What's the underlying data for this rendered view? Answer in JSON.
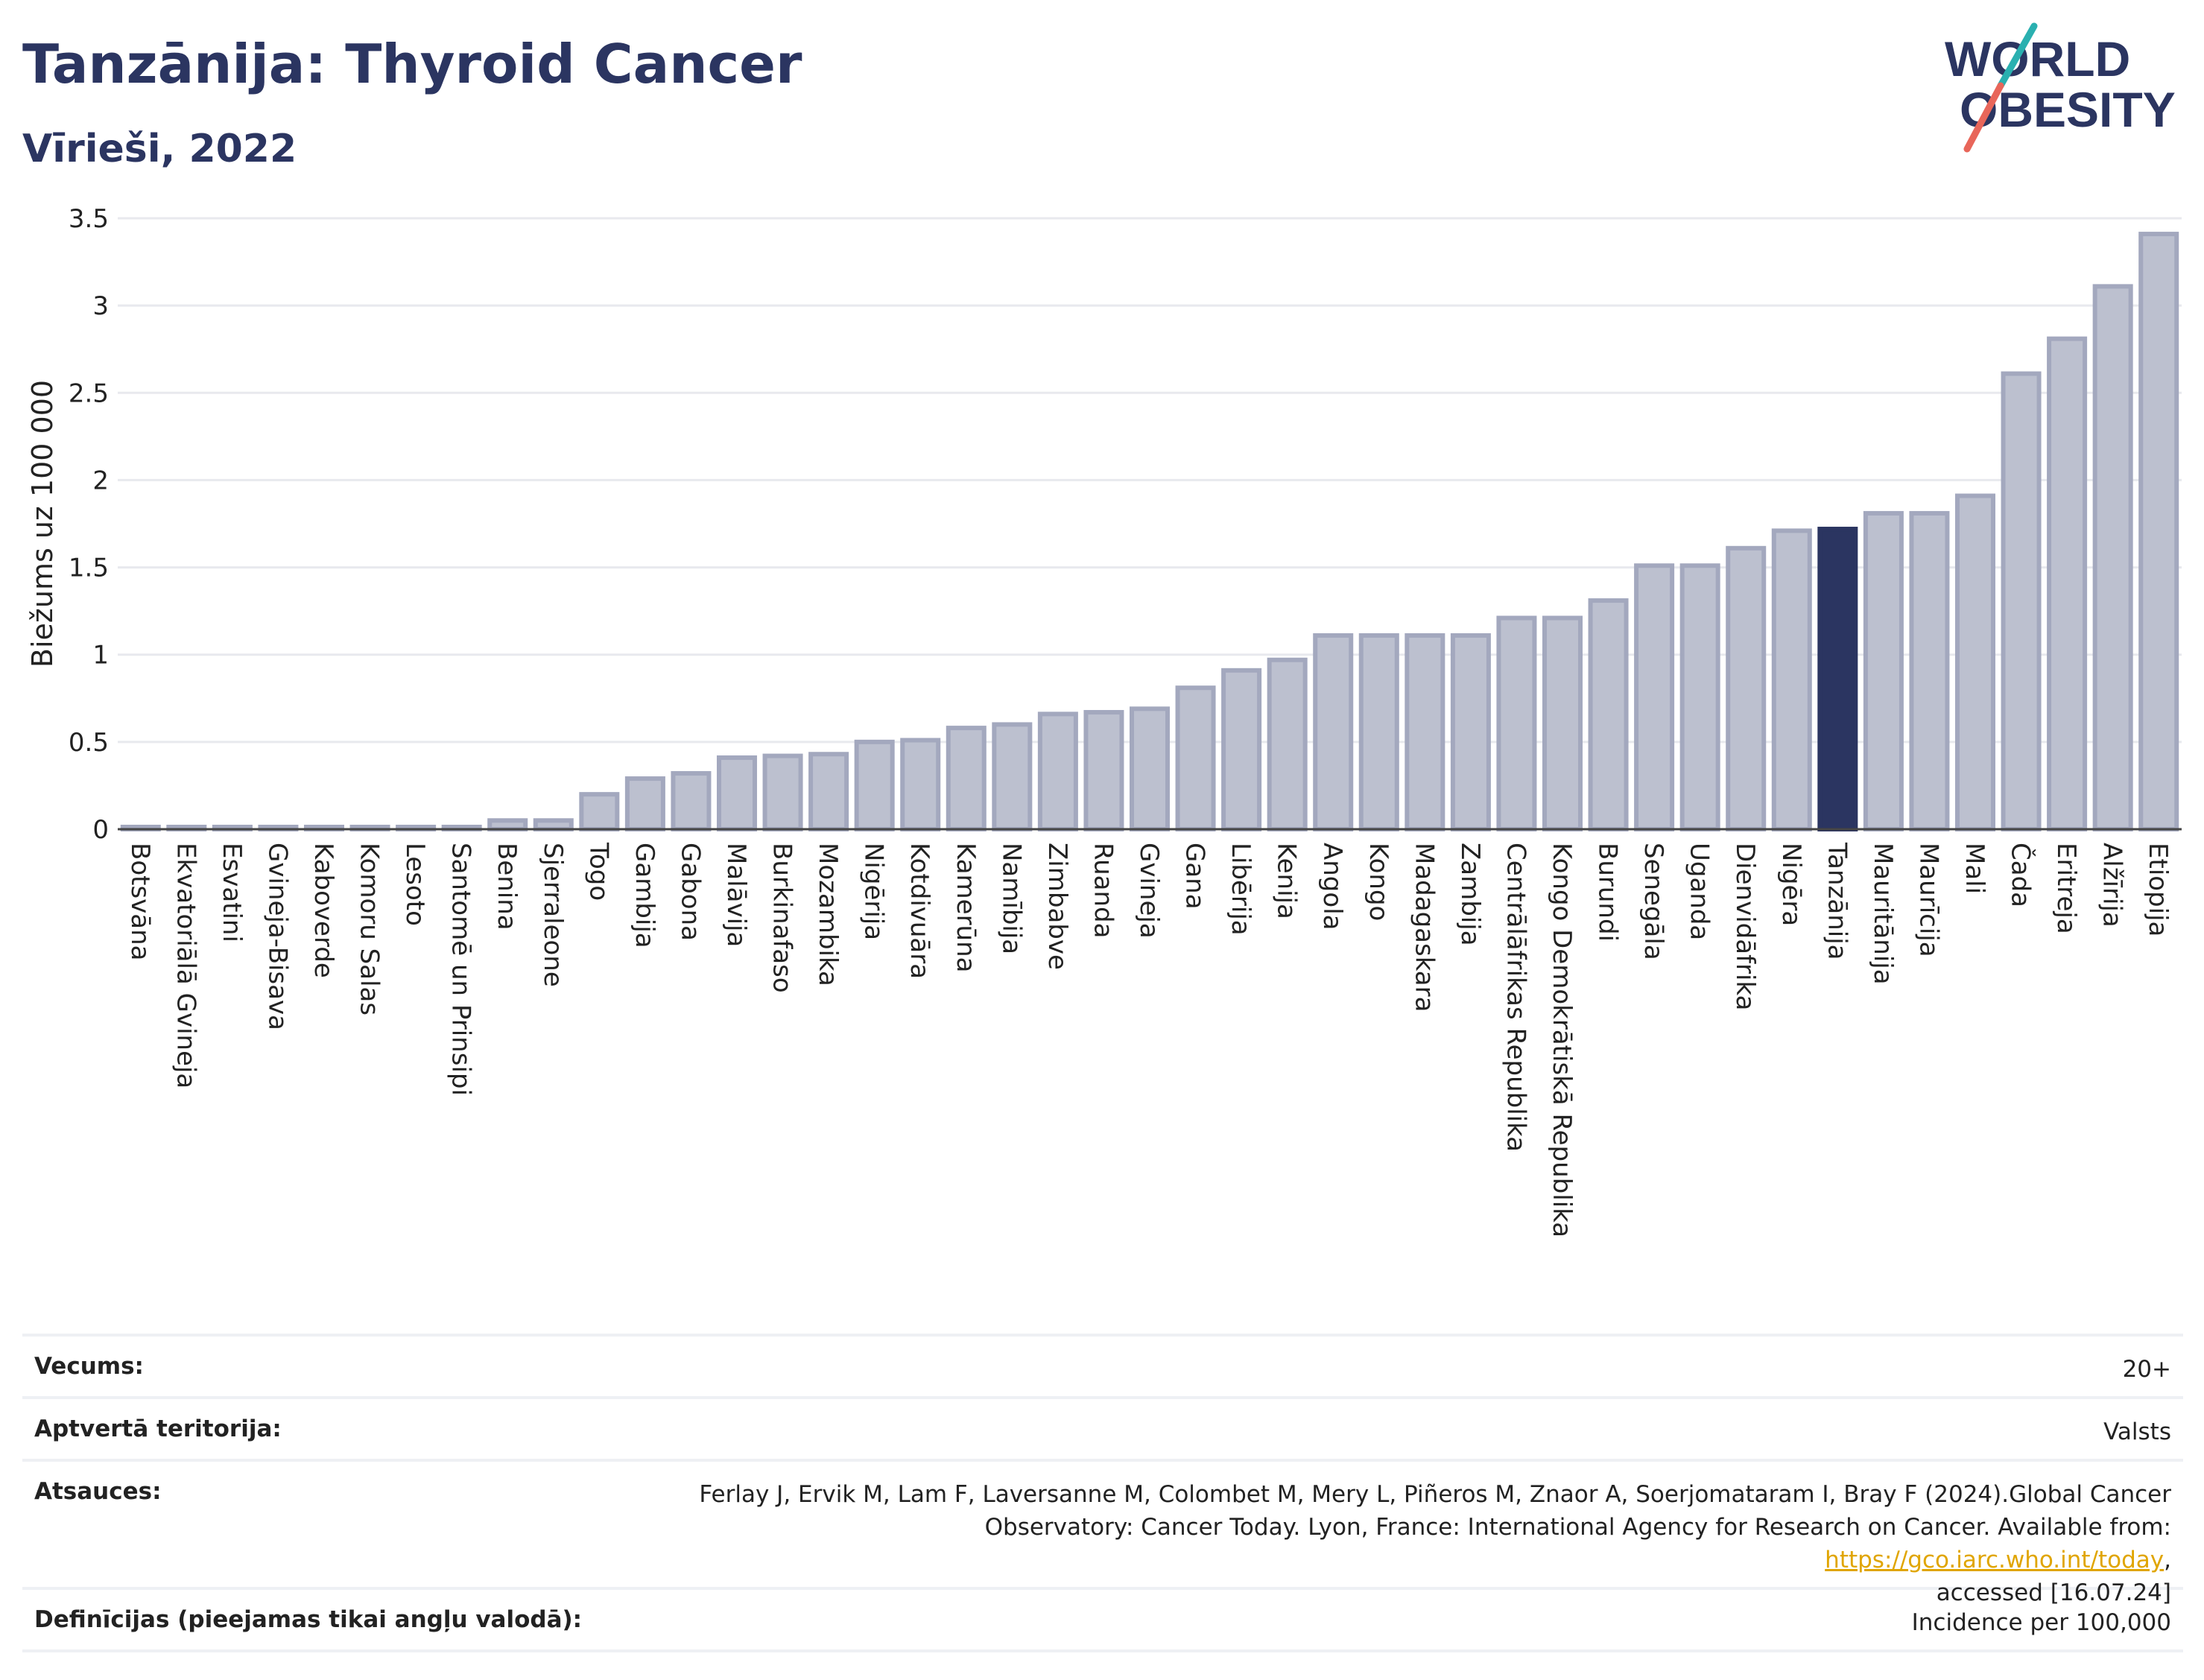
{
  "header": {
    "title": "Tanzānija: Thyroid Cancer",
    "subtitle": "Vīrieši, 2022",
    "logo_line1": "WORLD",
    "logo_line2": "OBESITY"
  },
  "colors": {
    "bar": "#bcc0cf",
    "bar_stroke": "#a3a8be",
    "highlight": "#2b3561",
    "title": "#2b3561",
    "logo_teal": "#2ab0b0",
    "logo_red": "#e8665a"
  },
  "chart_data": {
    "type": "bar",
    "title": "Tanzānija: Thyroid Cancer",
    "subtitle": "Vīrieši, 2022",
    "ylabel": "Biežums uz 100 000",
    "xlabel": "",
    "ylim": [
      0,
      3.5
    ],
    "yticks": [
      0,
      0.5,
      1,
      1.5,
      2,
      2.5,
      3,
      3.5
    ],
    "ytick_labels": [
      "0",
      "0.5",
      "1",
      "1.5",
      "2",
      "2.5",
      "3",
      "3.5"
    ],
    "grid": true,
    "highlight": "Tanzānija",
    "categories": [
      "Botsvāna",
      "Ekvatoriālā Gvineja",
      "Esvatini",
      "Gvineja-Bisava",
      "Kaboverde",
      "Komoru Salas",
      "Lesoto",
      "Santomē un Prinsipi",
      "Benina",
      "Sjerraleone",
      "Togo",
      "Gambija",
      "Gabona",
      "Malāvija",
      "Burkinafaso",
      "Mozambika",
      "Nigērija",
      "Kotdivuāra",
      "Kamerūna",
      "Namībija",
      "Zimbabve",
      "Ruanda",
      "Gvineja",
      "Gana",
      "Libērija",
      "Kenija",
      "Angola",
      "Kongo",
      "Madagaskara",
      "Zambija",
      "Centrālāfrikas Republika",
      "Kongo Demokrātiskā Republika",
      "Burundi",
      "Senegāla",
      "Uganda",
      "Dienvidāfrika",
      "Nigēra",
      "Tanzānija",
      "Mauritānija",
      "Maurīcija",
      "Mali",
      "Čada",
      "Eritreja",
      "Alžīrija",
      "Etiopija"
    ],
    "values": [
      0,
      0,
      0,
      0,
      0,
      0,
      0,
      0,
      0.05,
      0.05,
      0.2,
      0.29,
      0.32,
      0.41,
      0.42,
      0.43,
      0.5,
      0.51,
      0.58,
      0.6,
      0.66,
      0.67,
      0.69,
      0.81,
      0.91,
      0.97,
      1.11,
      1.11,
      1.11,
      1.11,
      1.21,
      1.21,
      1.31,
      1.51,
      1.51,
      1.61,
      1.71,
      1.72,
      1.81,
      1.81,
      1.91,
      2.61,
      2.81,
      3.11,
      3.41
    ]
  },
  "info": {
    "rows": [
      {
        "label": "Vecums:",
        "value": "20+"
      },
      {
        "label": "Aptvertā teritorija:",
        "value": "Valsts"
      },
      {
        "label": "Atsauces:",
        "value_line1": "Ferlay J, Ervik M, Lam F, Laversanne M, Colombet M, Mery L, Piñeros M, Znaor A, Soerjomataram I, Bray F (2024).Global Cancer",
        "value_line2_pre": "Observatory: Cancer Today. Lyon, France: International Agency for Research on Cancer. Available from: ",
        "value_link": "https://gco.iarc.who.int/today",
        "value_line2_post": ",",
        "value_line3": "accessed [16.07.24]"
      },
      {
        "label": "Definīcijas (pieejamas tikai angļu valodā):",
        "value": "Incidence per 100,000"
      }
    ]
  }
}
